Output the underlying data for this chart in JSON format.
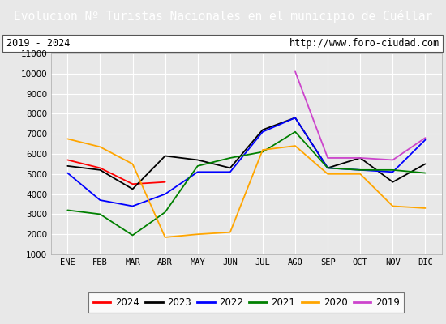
{
  "title": "Evolucion Nº Turistas Nacionales en el municipio de Cuéllar",
  "subtitle_left": "2019 - 2024",
  "subtitle_right": "http://www.foro-ciudad.com",
  "title_bg_color": "#4a90d9",
  "title_text_color": "white",
  "xlabel_months": [
    "ENE",
    "FEB",
    "MAR",
    "ABR",
    "MAY",
    "JUN",
    "JUL",
    "AGO",
    "SEP",
    "OCT",
    "NOV",
    "DIC"
  ],
  "ylim": [
    1000,
    11000
  ],
  "yticks": [
    1000,
    2000,
    3000,
    4000,
    5000,
    6000,
    7000,
    8000,
    9000,
    10000,
    11000
  ],
  "series": {
    "2024": {
      "color": "red",
      "data": [
        5700,
        5300,
        4500,
        4600,
        null,
        null,
        null,
        null,
        null,
        null,
        null,
        null
      ]
    },
    "2023": {
      "color": "black",
      "data": [
        5400,
        5200,
        4250,
        5900,
        5700,
        5300,
        7200,
        7800,
        5300,
        5800,
        4600,
        5500
      ]
    },
    "2022": {
      "color": "blue",
      "data": [
        5050,
        3700,
        3400,
        4000,
        5100,
        5100,
        7100,
        7800,
        5300,
        5200,
        5100,
        6700
      ]
    },
    "2021": {
      "color": "green",
      "data": [
        3200,
        3000,
        1950,
        3100,
        5400,
        5800,
        6100,
        7100,
        5300,
        5200,
        5200,
        5050
      ]
    },
    "2020": {
      "color": "orange",
      "data": [
        6750,
        6350,
        5500,
        1850,
        2000,
        2100,
        6200,
        6400,
        5000,
        5000,
        3400,
        3300
      ]
    },
    "2019": {
      "color": "#cc44cc",
      "data": [
        null,
        null,
        null,
        null,
        null,
        null,
        null,
        10100,
        5800,
        5800,
        5700,
        6800
      ]
    }
  },
  "background_color": "#e8e8e8",
  "plot_bg_color": "#e8e8e8",
  "grid_color": "#ffffff",
  "legend_order": [
    "2024",
    "2023",
    "2022",
    "2021",
    "2020",
    "2019"
  ]
}
